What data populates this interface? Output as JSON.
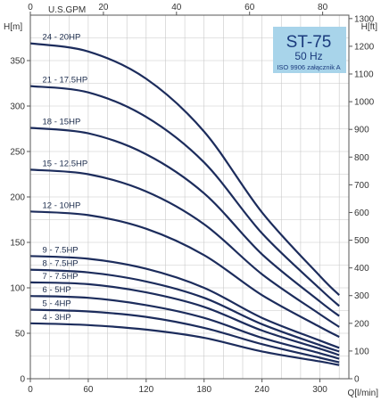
{
  "chart_data": {
    "type": "line",
    "title": "ST-75",
    "subtitle": "50 Hz",
    "note": "ISO 9906 załącznik A",
    "xlabel": "Q[l/min]",
    "xlabel_top": "U.S.GPM",
    "ylabel": "H[m]",
    "ylabel_right": "H[ft]",
    "xlim": [
      0,
      330
    ],
    "ylim": [
      0,
      400
    ],
    "x_ticks": [
      0,
      60,
      120,
      180,
      240,
      300
    ],
    "y_ticks": [
      0,
      50,
      100,
      150,
      200,
      250,
      300,
      350
    ],
    "top_ticks": [
      0,
      20,
      40,
      60,
      80
    ],
    "right_ticks": [
      0,
      100,
      200,
      300,
      400,
      500,
      600,
      700,
      800,
      900,
      1000,
      1100,
      1200,
      1300
    ],
    "grid": true,
    "series": [
      {
        "name": "24 - 20HP",
        "x": [
          0,
          60,
          120,
          180,
          240,
          300,
          320
        ],
        "y": [
          369,
          360,
          330,
          272,
          183,
          113,
          92
        ]
      },
      {
        "name": "21 - 17.5HP",
        "x": [
          0,
          60,
          120,
          180,
          240,
          300,
          320
        ],
        "y": [
          322,
          315,
          288,
          238,
          160,
          99,
          80
        ]
      },
      {
        "name": "18 - 15HP",
        "x": [
          0,
          60,
          120,
          180,
          240,
          300,
          320
        ],
        "y": [
          276,
          270,
          247,
          204,
          137,
          85,
          69
        ]
      },
      {
        "name": "15 - 12.5HP",
        "x": [
          0,
          60,
          120,
          180,
          240,
          300,
          320
        ],
        "y": [
          230,
          225,
          206,
          170,
          115,
          71,
          57
        ]
      },
      {
        "name": "12 - 10HP",
        "x": [
          0,
          60,
          120,
          180,
          240,
          300,
          320
        ],
        "y": [
          184,
          180,
          165,
          136,
          92,
          57,
          46
        ]
      },
      {
        "name": "9 - 7.5HP",
        "x": [
          0,
          60,
          120,
          180,
          240,
          300,
          320
        ],
        "y": [
          135,
          132,
          121,
          100,
          67,
          42,
          34
        ]
      },
      {
        "name": "8 - 7.5HP",
        "x": [
          0,
          60,
          120,
          180,
          240,
          300,
          320
        ],
        "y": [
          120,
          117,
          107,
          89,
          60,
          37,
          30
        ]
      },
      {
        "name": "7 - 7.5HP",
        "x": [
          0,
          60,
          120,
          180,
          240,
          300,
          320
        ],
        "y": [
          106,
          104,
          95,
          79,
          53,
          33,
          26
        ]
      },
      {
        "name": "6 - 5HP",
        "x": [
          0,
          60,
          120,
          180,
          240,
          300,
          320
        ],
        "y": [
          91,
          89,
          81,
          67,
          45,
          28,
          22
        ]
      },
      {
        "name": "5 - 4HP",
        "x": [
          0,
          60,
          120,
          180,
          240,
          300,
          320
        ],
        "y": [
          76,
          74,
          68,
          56,
          38,
          23,
          18
        ]
      },
      {
        "name": "4 - 3HP",
        "x": [
          0,
          60,
          120,
          180,
          240,
          300,
          320
        ],
        "y": [
          61,
          59,
          54,
          45,
          30,
          19,
          15
        ]
      }
    ],
    "colors": {
      "curve": "#1c2c5c",
      "title_box": "#a8d4ea",
      "title_text": "#1a3a7c",
      "grid": "#c8c8c8"
    }
  }
}
